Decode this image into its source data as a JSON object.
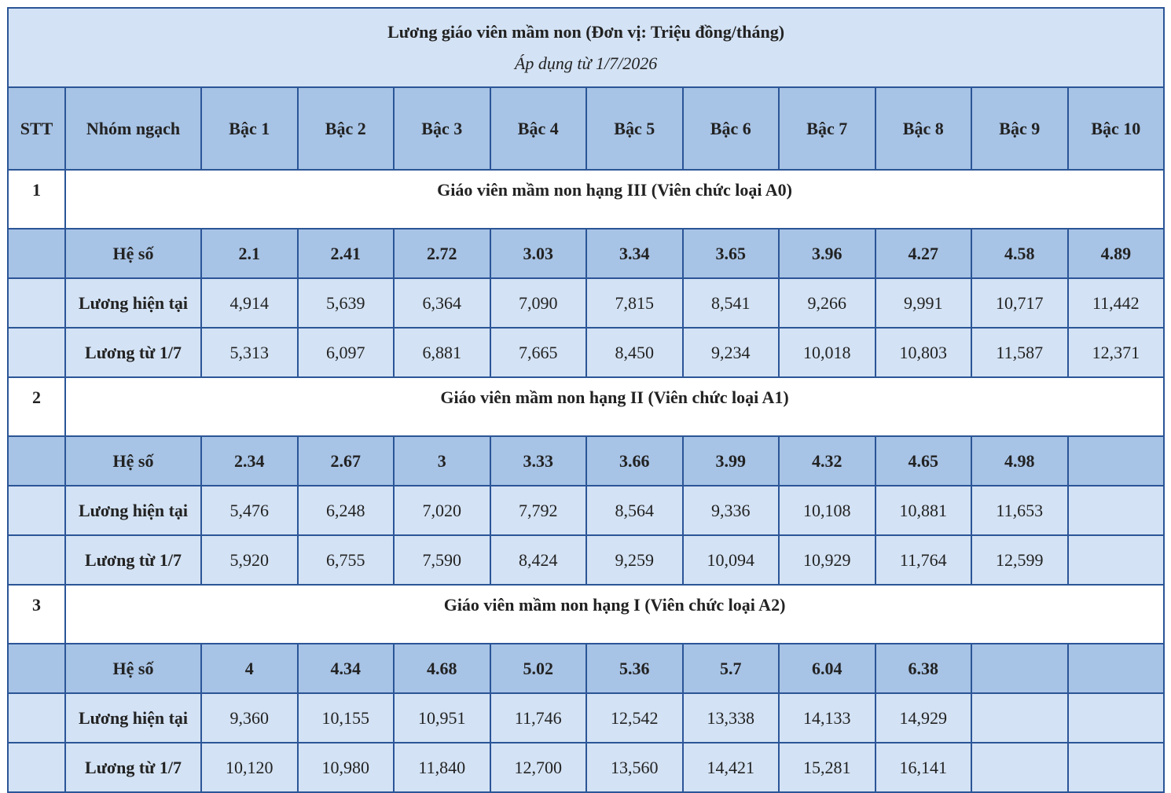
{
  "table": {
    "title": "Lương giáo viên mầm non (Đơn vị: Triệu đồng/tháng)",
    "subtitle": "Áp dụng từ 1/7/2026",
    "header": [
      "STT",
      "Nhóm ngạch",
      "Bậc 1",
      "Bậc 2",
      "Bậc 3",
      "Bậc 4",
      "Bậc 5",
      "Bậc 6",
      "Bậc 7",
      "Bậc 8",
      "Bậc 9",
      "Bậc 10"
    ],
    "sections": [
      {
        "stt": "1",
        "title": "Giáo viên mầm non hạng III (Viên chức loại A0)",
        "rows": [
          {
            "label": "Hệ số",
            "values": [
              "2.1",
              "2.41",
              "2.72",
              "3.03",
              "3.34",
              "3.65",
              "3.96",
              "4.27",
              "4.58",
              "4.89"
            ]
          },
          {
            "label": "Lương hiện tại",
            "values": [
              "4,914",
              "5,639",
              "6,364",
              "7,090",
              "7,815",
              "8,541",
              "9,266",
              "9,991",
              "10,717",
              "11,442"
            ]
          },
          {
            "label": "Lương từ 1/7",
            "values": [
              "5,313",
              "6,097",
              "6,881",
              "7,665",
              "8,450",
              "9,234",
              "10,018",
              "10,803",
              "11,587",
              "12,371"
            ]
          }
        ]
      },
      {
        "stt": "2",
        "title": "Giáo viên mầm non hạng II (Viên chức loại A1)",
        "rows": [
          {
            "label": "Hệ số",
            "values": [
              "2.34",
              "2.67",
              "3",
              "3.33",
              "3.66",
              "3.99",
              "4.32",
              "4.65",
              "4.98"
            ]
          },
          {
            "label": "Lương hiện tại",
            "values": [
              "5,476",
              "6,248",
              "7,020",
              "7,792",
              "8,564",
              "9,336",
              "10,108",
              "10,881",
              "11,653"
            ]
          },
          {
            "label": "Lương từ 1/7",
            "values": [
              "5,920",
              "6,755",
              "7,590",
              "8,424",
              "9,259",
              "10,094",
              "10,929",
              "11,764",
              "12,599"
            ]
          }
        ]
      },
      {
        "stt": "3",
        "title": "Giáo viên mầm non hạng I (Viên chức loại A2)",
        "rows": [
          {
            "label": "Hệ số",
            "values": [
              "4",
              "4.34",
              "4.68",
              "5.02",
              "5.36",
              "5.7",
              "6.04",
              "6.38"
            ]
          },
          {
            "label": "Lương hiện tại",
            "values": [
              "9,360",
              "10,155",
              "10,951",
              "11,746",
              "12,542",
              "13,338",
              "14,133",
              "14,929"
            ]
          },
          {
            "label": "Lương từ 1/7",
            "values": [
              "10,120",
              "10,980",
              "11,840",
              "12,700",
              "13,560",
              "14,421",
              "15,281",
              "16,141"
            ]
          }
        ]
      }
    ]
  }
}
